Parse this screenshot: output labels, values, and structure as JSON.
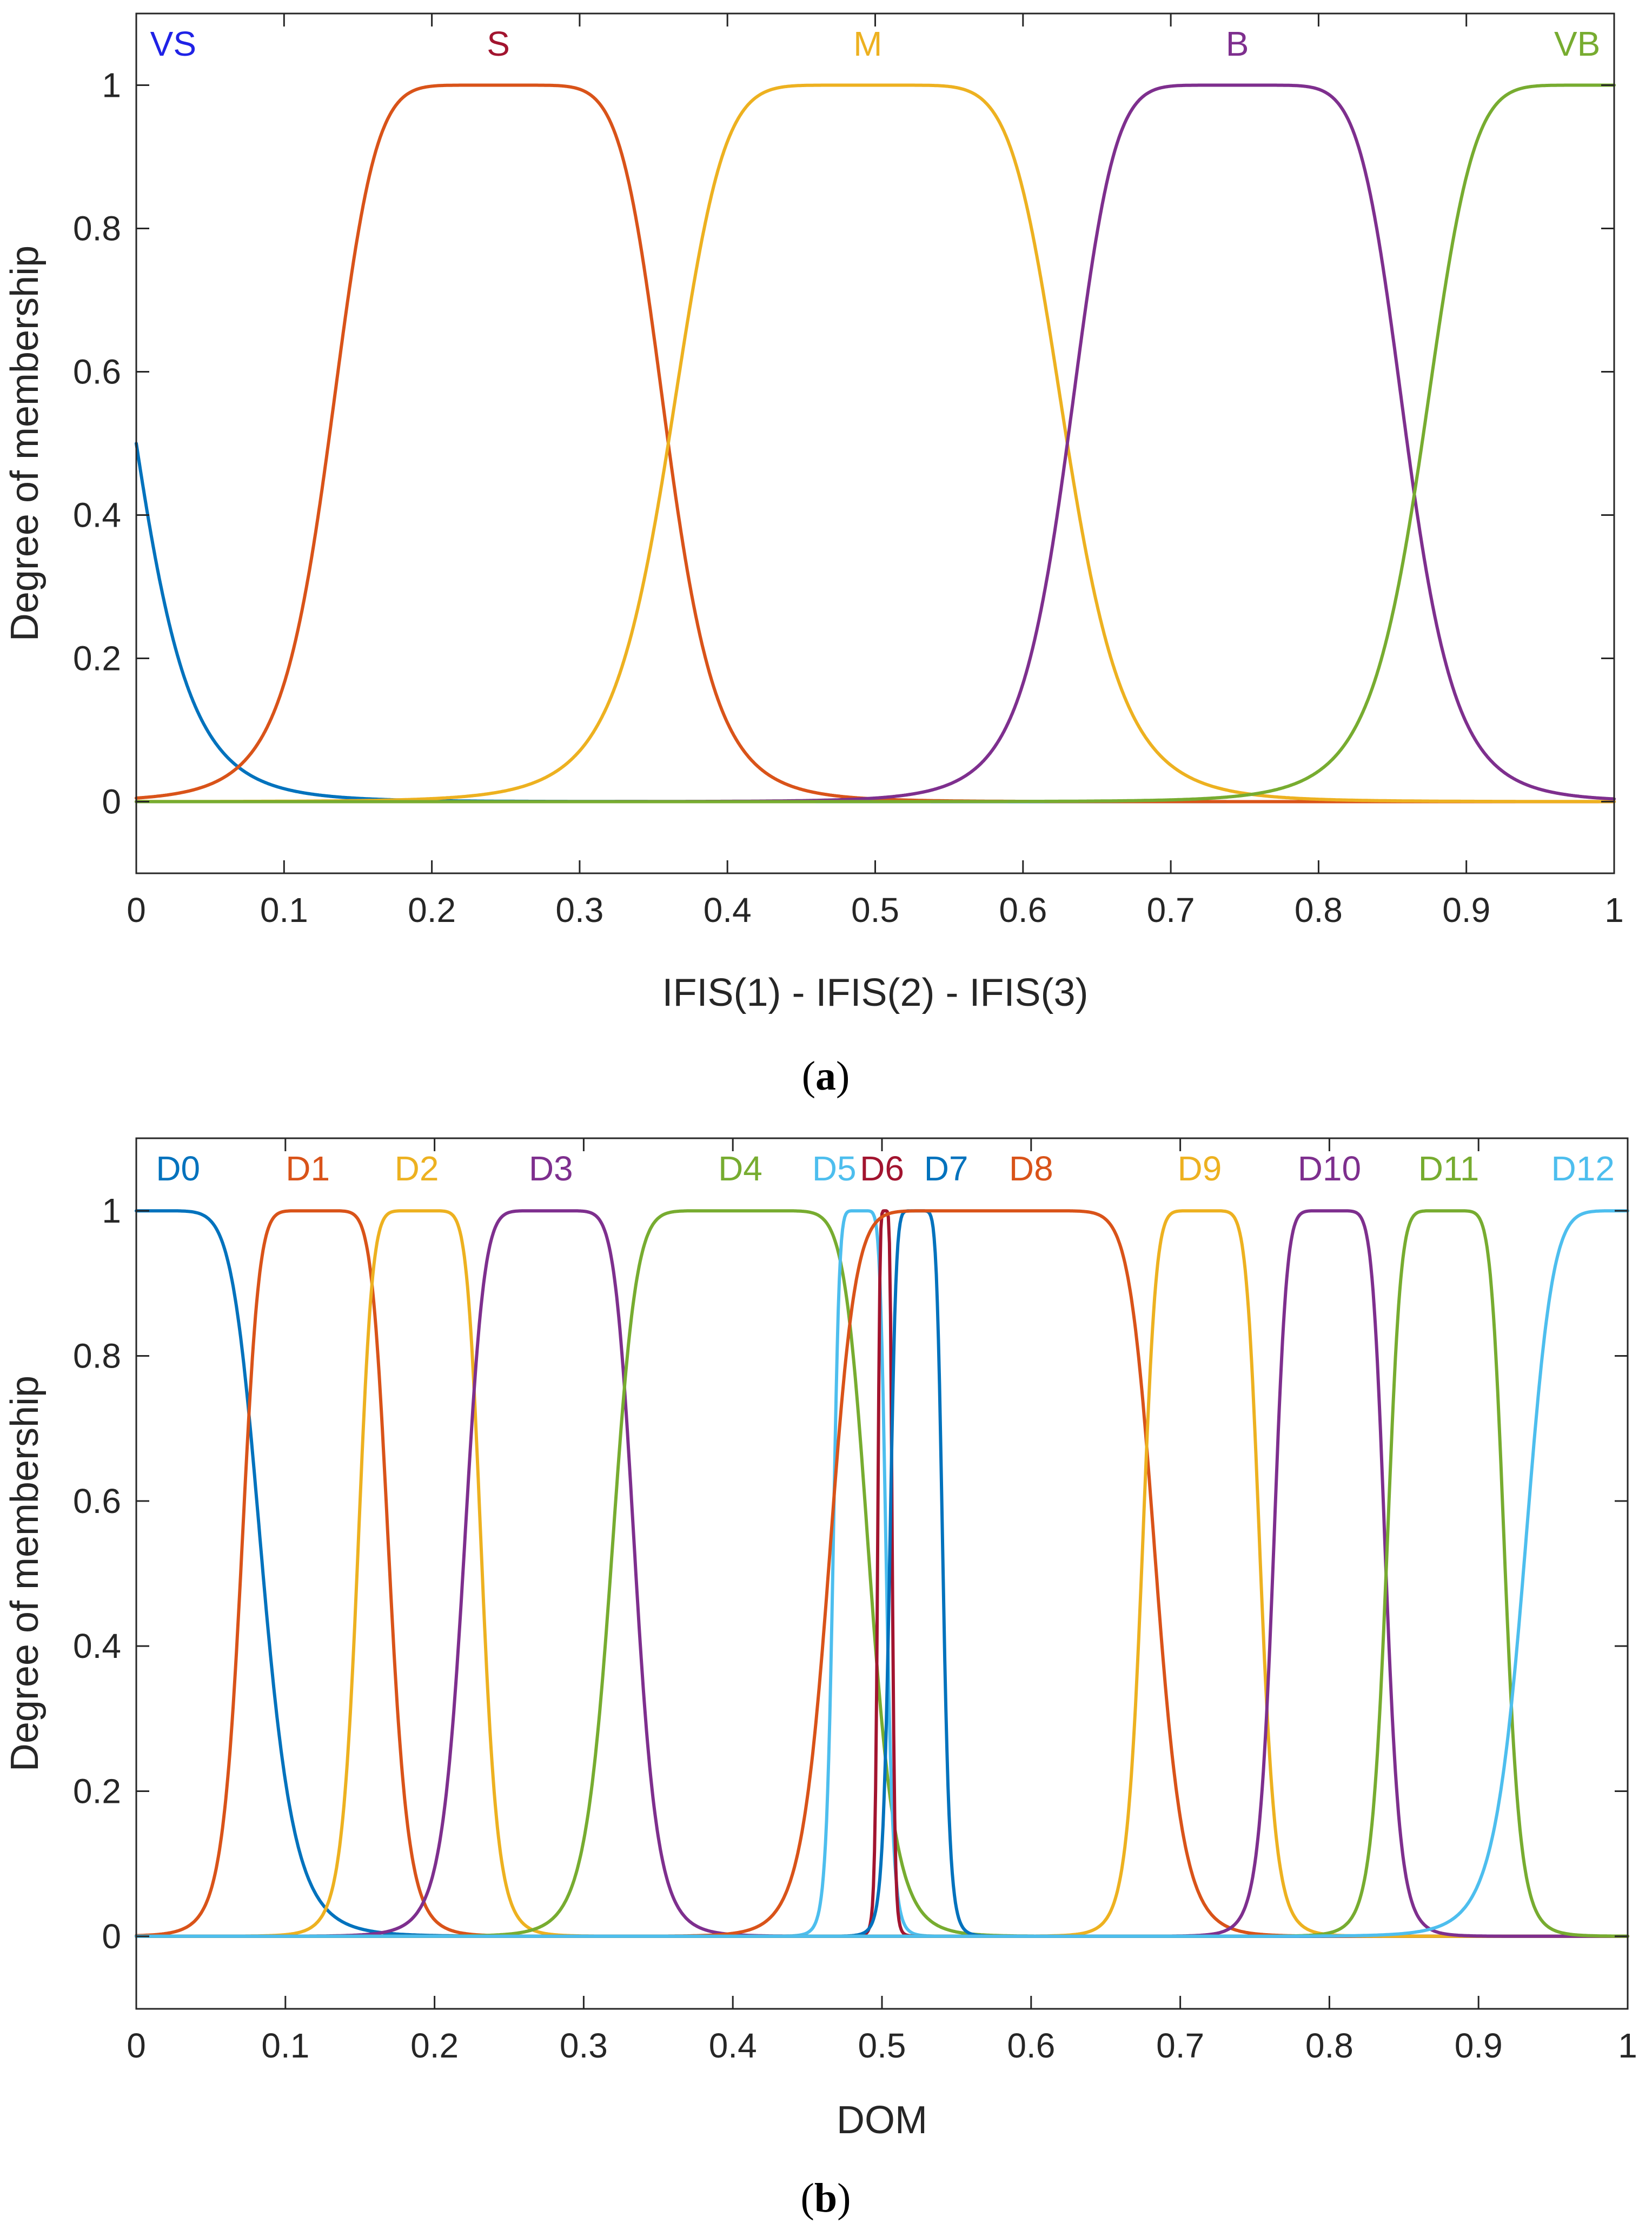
{
  "chart_data": [
    {
      "type": "line",
      "panel": "a",
      "caption": "(a)",
      "caption_letter": "a",
      "xlabel": "IFIS(1) - IFIS(2) - IFIS(3)",
      "ylabel": "Degree of membership",
      "xlim": [
        0,
        1
      ],
      "ylim": [
        -0.1,
        1.1
      ],
      "xticks": [
        0,
        0.1,
        0.2,
        0.3,
        0.4,
        0.5,
        0.6,
        0.7,
        0.8,
        0.9,
        1
      ],
      "xtick_labels": [
        "0",
        "0.1",
        "0.2",
        "0.3",
        "0.4",
        "0.5",
        "0.6",
        "0.7",
        "0.8",
        "0.9",
        "1"
      ],
      "yticks": [
        0,
        0.2,
        0.4,
        0.6,
        0.8,
        1
      ],
      "ytick_labels": [
        "0",
        "0.2",
        "0.4",
        "0.6",
        "0.8",
        "1"
      ],
      "grid": false,
      "series": [
        {
          "name": "VS",
          "color": "#0072BD",
          "label_color": "#1F22E6",
          "label_x": 0.025,
          "mf": "gbell",
          "params": [
            0.13,
            3.5,
            -0.13
          ]
        },
        {
          "name": "S",
          "color": "#D95319",
          "label_color": "#A2142F",
          "label_x": 0.245,
          "mf": "gbell",
          "params": [
            0.115,
            3.5,
            0.245
          ]
        },
        {
          "name": "M",
          "color": "#EDB120",
          "label_color": "#EDB120",
          "label_x": 0.495,
          "mf": "gbell",
          "params": [
            0.135,
            3.5,
            0.495
          ]
        },
        {
          "name": "B",
          "color": "#7E2F8E",
          "label_color": "#7E2F8E",
          "label_x": 0.745,
          "mf": "gbell",
          "params": [
            0.115,
            3.5,
            0.745
          ]
        },
        {
          "name": "VB",
          "color": "#77AC30",
          "label_color": "#77AC30",
          "label_x": 0.975,
          "mf": "gbell",
          "params": [
            0.125,
            3.5,
            0.995
          ]
        }
      ]
    },
    {
      "type": "line",
      "panel": "b",
      "caption": "(b)",
      "caption_letter": "b",
      "xlabel": "DOM",
      "ylabel": "Degree of membership",
      "xlim": [
        0,
        1
      ],
      "ylim": [
        -0.1,
        1.1
      ],
      "xticks": [
        0,
        0.1,
        0.2,
        0.3,
        0.4,
        0.5,
        0.6,
        0.7,
        0.8,
        0.9,
        1
      ],
      "xtick_labels": [
        "0",
        "0.1",
        "0.2",
        "0.3",
        "0.4",
        "0.5",
        "0.6",
        "0.7",
        "0.8",
        "0.9",
        "1"
      ],
      "yticks": [
        0,
        0.2,
        0.4,
        0.6,
        0.8,
        1
      ],
      "ytick_labels": [
        "0",
        "0.2",
        "0.4",
        "0.6",
        "0.8",
        "1"
      ],
      "grid": false,
      "series": [
        {
          "name": "D0",
          "color": "#0072BD",
          "label_color": "#0072BD",
          "label_x": 0.028,
          "mf": "gbell",
          "params": [
            0.085,
            4,
            0.0
          ]
        },
        {
          "name": "D1",
          "color": "#D95319",
          "label_color": "#D95319",
          "label_x": 0.115,
          "mf": "gbell",
          "params": [
            0.05,
            4,
            0.12
          ]
        },
        {
          "name": "D2",
          "color": "#EDB120",
          "label_color": "#EDB120",
          "label_x": 0.188,
          "mf": "gbell",
          "params": [
            0.042,
            4,
            0.19
          ]
        },
        {
          "name": "D3",
          "color": "#7E2F8E",
          "label_color": "#7E2F8E",
          "label_x": 0.278,
          "mf": "gbell",
          "params": [
            0.058,
            4,
            0.277
          ]
        },
        {
          "name": "D4",
          "color": "#77AC30",
          "label_color": "#77AC30",
          "label_x": 0.405,
          "mf": "gbell",
          "params": [
            0.087,
            5,
            0.405
          ]
        },
        {
          "name": "D5",
          "color": "#4DBEEE",
          "label_color": "#4DBEEE",
          "label_x": 0.468,
          "mf": "gbell",
          "params": [
            0.018,
            4,
            0.485
          ]
        },
        {
          "name": "D6",
          "color": "#A2142F",
          "label_color": "#A2142F",
          "label_x": 0.5,
          "mf": "gbell",
          "params": [
            0.005,
            3,
            0.502
          ]
        },
        {
          "name": "D7",
          "color": "#0072BD",
          "label_color": "#0072BD",
          "label_x": 0.543,
          "mf": "gbell",
          "params": [
            0.018,
            4,
            0.523
          ]
        },
        {
          "name": "D8",
          "color": "#D95319",
          "label_color": "#D95319",
          "label_x": 0.6,
          "mf": "gbell",
          "params": [
            0.11,
            6,
            0.574
          ]
        },
        {
          "name": "D9",
          "color": "#EDB120",
          "label_color": "#EDB120",
          "label_x": 0.713,
          "mf": "gbell",
          "params": [
            0.04,
            4,
            0.714
          ]
        },
        {
          "name": "D10",
          "color": "#7E2F8E",
          "label_color": "#7E2F8E",
          "label_x": 0.8,
          "mf": "gbell",
          "params": [
            0.038,
            4,
            0.8
          ]
        },
        {
          "name": "D11",
          "color": "#77AC30",
          "label_color": "#77AC30",
          "label_x": 0.88,
          "mf": "gbell",
          "params": [
            0.04,
            4,
            0.878
          ]
        },
        {
          "name": "D12",
          "color": "#4DBEEE",
          "label_color": "#4DBEEE",
          "label_x": 0.97,
          "mf": "gbell",
          "params": [
            0.08,
            4,
            1.01
          ]
        }
      ]
    }
  ]
}
